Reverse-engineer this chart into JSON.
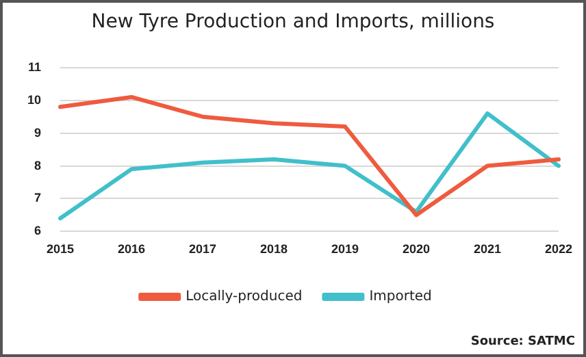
{
  "chart_data": {
    "type": "line",
    "title": "New Tyre Production and Imports, millions",
    "categories": [
      "2015",
      "2016",
      "2017",
      "2018",
      "2019",
      "2020",
      "2021",
      "2022"
    ],
    "series": [
      {
        "name": "Locally-produced",
        "color": "#ef5b3e",
        "values": [
          9.8,
          10.1,
          9.5,
          9.3,
          9.2,
          6.5,
          8.0,
          8.2
        ]
      },
      {
        "name": "Imported",
        "color": "#41bfcb",
        "values": [
          6.4,
          7.9,
          8.1,
          8.2,
          8.0,
          6.6,
          9.6,
          8.0
        ]
      }
    ],
    "ylim": [
      6,
      11
    ],
    "yticks": [
      6,
      7,
      8,
      9,
      10,
      11
    ],
    "grid": "y",
    "legend": "bottom",
    "marker": "none",
    "line_style": "solid",
    "annotations": [
      "Source: SATMC"
    ]
  }
}
